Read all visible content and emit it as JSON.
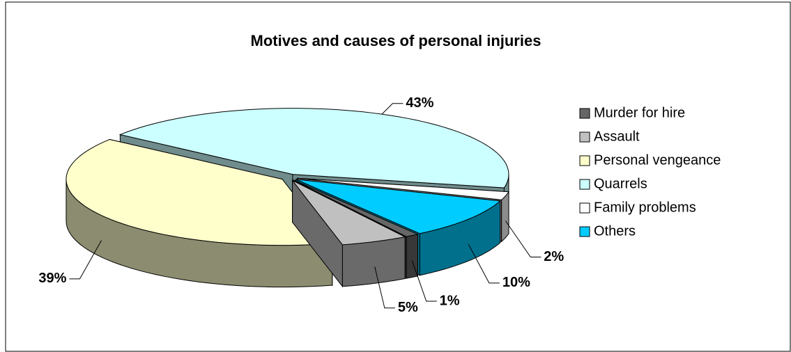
{
  "chart_data": {
    "type": "pie3d",
    "title": "Motives and causes of  personal injuries",
    "categories": [
      "Murder for hire",
      "Assault",
      "Personal vengeance",
      "Quarrels",
      "Family problems",
      "Others"
    ],
    "values": [
      1,
      5,
      39,
      43,
      2,
      10
    ],
    "value_labels": [
      "1%",
      "5%",
      "39%",
      "43%",
      "2%",
      "10%"
    ],
    "colors": [
      "#666666",
      "#c0c0c0",
      "#ffffcc",
      "#ccffff",
      "#ffffff",
      "#00ccff"
    ],
    "legend": "right"
  }
}
